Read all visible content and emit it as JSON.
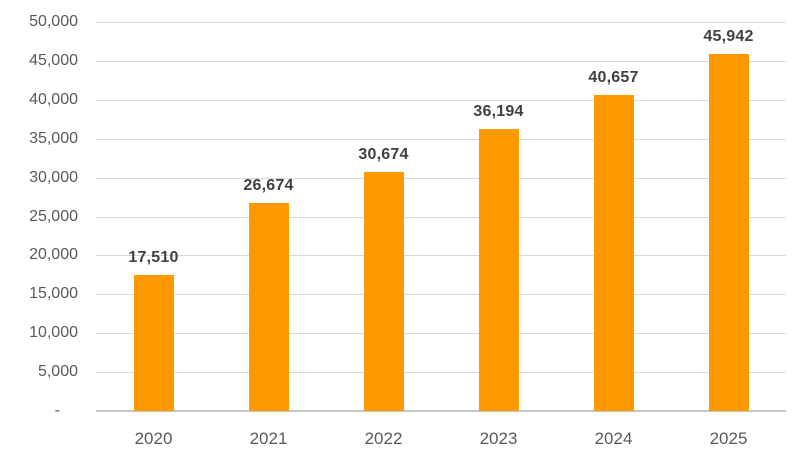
{
  "chart_data": {
    "type": "bar",
    "title": "",
    "xlabel": "",
    "ylabel": "",
    "categories": [
      "2020",
      "2021",
      "2022",
      "2023",
      "2024",
      "2025"
    ],
    "values": [
      17510,
      26674,
      30674,
      36194,
      40657,
      45942
    ],
    "data_labels": [
      "17,510",
      "26,674",
      "30,674",
      "36,194",
      "40,657",
      "45,942"
    ],
    "ylim": [
      0,
      50000
    ],
    "y_tick_step": 5000,
    "y_tick_labels": [
      "-",
      "5,000",
      "10,000",
      "15,000",
      "20,000",
      "25,000",
      "30,000",
      "35,000",
      "40,000",
      "45,000",
      "50,000"
    ],
    "grid": true,
    "legend": "none",
    "colors": {
      "bar": "#FF9900",
      "gridline": "#D9D9D9",
      "axis_line": "#C6C6C6",
      "axis_labels": "#595959",
      "data_labels": "#404040",
      "background": "#FFFFFF"
    }
  }
}
